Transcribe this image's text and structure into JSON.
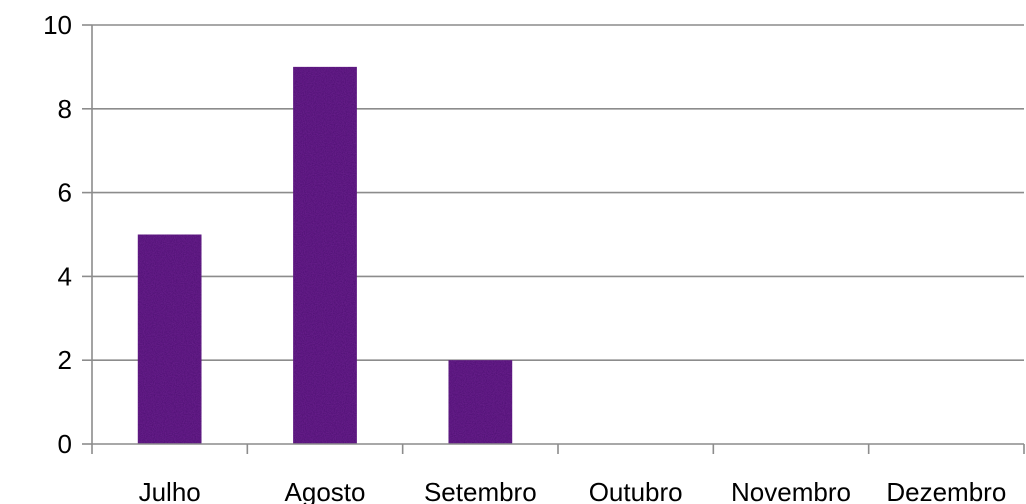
{
  "chart_data": {
    "type": "bar",
    "categories": [
      "Julho",
      "Agosto",
      "Setembro",
      "Outubro",
      "Novembro",
      "Dezembro"
    ],
    "values": [
      5,
      9,
      2,
      0,
      0,
      0
    ],
    "title": "",
    "xlabel": "",
    "ylabel": "",
    "ylim": [
      0,
      10
    ],
    "yticks": [
      0,
      2,
      4,
      6,
      8,
      10
    ],
    "grid": true,
    "legend": "none",
    "bar_color": "#4b1470"
  }
}
